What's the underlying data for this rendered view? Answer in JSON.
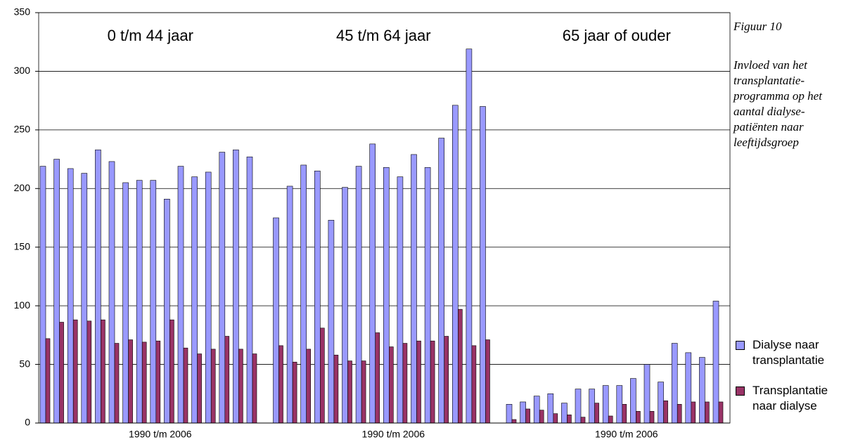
{
  "chart_data": {
    "type": "grouped-bar",
    "groups": [
      {
        "title": "0 t/m 44 jaar",
        "label": "1990 t/m 2006"
      },
      {
        "title": "45 t/m 64 jaar",
        "label": "1990 t/m 2006"
      },
      {
        "title": "65 jaar of ouder",
        "label": "1990 t/m 2006"
      }
    ],
    "series": [
      {
        "name": "Dialyse naar transplantatie",
        "color": "#9999ff",
        "values": [
          219,
          225,
          217,
          213,
          233,
          223,
          205,
          207,
          207,
          191,
          219,
          210,
          214,
          231,
          233,
          227,
          175,
          202,
          220,
          215,
          173,
          201,
          219,
          238,
          218,
          210,
          229,
          218,
          243,
          271,
          319,
          270,
          16,
          18,
          23,
          25,
          17,
          29,
          29,
          32,
          32,
          38,
          50,
          35,
          68,
          60,
          56,
          104
        ]
      },
      {
        "name": "Transplantatie naar dialyse",
        "color": "#993366",
        "values": [
          72,
          86,
          88,
          87,
          88,
          68,
          71,
          69,
          70,
          88,
          64,
          59,
          63,
          74,
          63,
          59,
          66,
          52,
          63,
          81,
          58,
          53,
          53,
          77,
          65,
          68,
          70,
          70,
          74,
          97,
          66,
          71,
          3,
          12,
          11,
          8,
          7,
          5,
          17,
          6,
          16,
          10,
          10,
          19,
          16,
          18,
          18,
          18
        ]
      }
    ],
    "ylim": [
      0,
      350
    ],
    "yticks": [
      0,
      50,
      100,
      150,
      200,
      250,
      300,
      350
    ],
    "grid": true,
    "caption": {
      "title": "Figuur 10",
      "lines": [
        "Invloed van het",
        "transplantatie-",
        "programma op het",
        "aantal dialyse-",
        "patiënten naar",
        "leeftijdsgroep"
      ]
    }
  }
}
